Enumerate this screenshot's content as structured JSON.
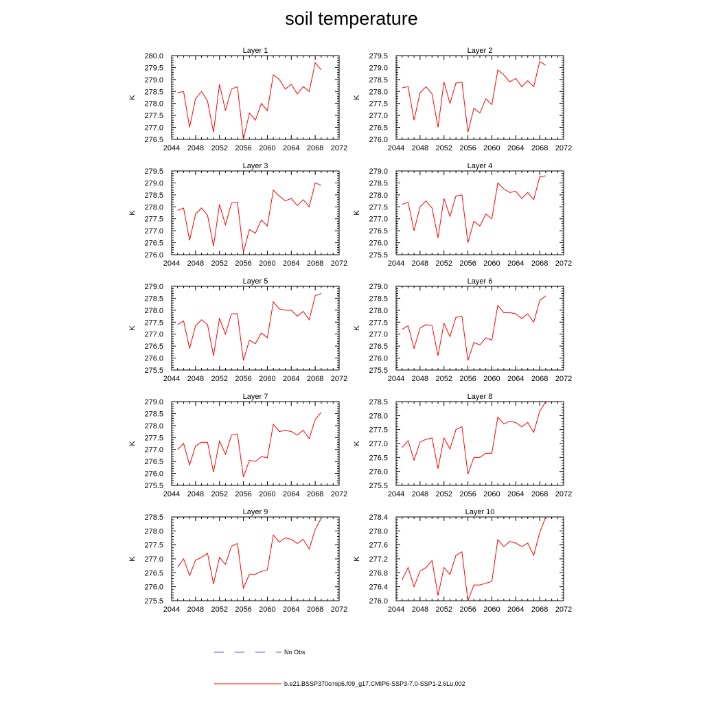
{
  "title": "soil temperature",
  "legend": {
    "items": [
      {
        "label": "No Obs",
        "color": "#5b5bd6",
        "dash": true
      },
      {
        "label": "b.e21.BSSP370cmip6.f09_g17.CMIP6-SSP3-7.0-SSP1-2.6Lu.002",
        "color": "#ff0000",
        "dash": false
      }
    ]
  },
  "colors": {
    "series": "#ff0000",
    "axis": "#000000"
  },
  "chart_data": [
    {
      "type": "line",
      "title": "Layer 1",
      "ylabel": "K",
      "xlim": [
        2044,
        2072
      ],
      "ylim": [
        276.5,
        280.0
      ],
      "xticks": [
        2044,
        2048,
        2052,
        2056,
        2060,
        2064,
        2068,
        2072
      ],
      "yticks": [
        276.5,
        277.0,
        277.5,
        278.0,
        278.5,
        279.0,
        279.5,
        280.0
      ],
      "yticklabels": [
        "276.5",
        "277.0",
        "277.5",
        "278.0",
        "278.5",
        "279.0",
        "279.5",
        "280.0"
      ],
      "x": [
        2045,
        2046,
        2047,
        2048,
        2049,
        2050,
        2051,
        2052,
        2053,
        2054,
        2055,
        2056,
        2057,
        2058,
        2059,
        2060,
        2061,
        2062,
        2063,
        2064,
        2065,
        2066,
        2067,
        2068,
        2069
      ],
      "series": [
        {
          "values": [
            278.45,
            278.5,
            277.0,
            278.2,
            278.5,
            278.1,
            276.8,
            278.8,
            277.7,
            278.6,
            278.7,
            276.5,
            277.6,
            277.3,
            278.0,
            277.7,
            279.2,
            279.0,
            278.6,
            278.8,
            278.4,
            278.7,
            278.5,
            279.7,
            279.4
          ]
        }
      ]
    },
    {
      "type": "line",
      "title": "Layer 2",
      "ylabel": "K",
      "xlim": [
        2044,
        2072
      ],
      "ylim": [
        276.0,
        279.5
      ],
      "xticks": [
        2044,
        2048,
        2052,
        2056,
        2060,
        2064,
        2068,
        2072
      ],
      "yticks": [
        276.0,
        276.5,
        277.0,
        277.5,
        278.0,
        278.5,
        279.0,
        279.5
      ],
      "yticklabels": [
        "276.0",
        "276.5",
        "277.0",
        "277.5",
        "278.0",
        "278.5",
        "279.0",
        "279.5"
      ],
      "x": [
        2045,
        2046,
        2047,
        2048,
        2049,
        2050,
        2051,
        2052,
        2053,
        2054,
        2055,
        2056,
        2057,
        2058,
        2059,
        2060,
        2061,
        2062,
        2063,
        2064,
        2065,
        2066,
        2067,
        2068,
        2069
      ],
      "series": [
        {
          "values": [
            278.15,
            278.2,
            276.8,
            277.95,
            278.2,
            277.9,
            276.5,
            278.4,
            277.5,
            278.35,
            278.4,
            276.3,
            277.3,
            277.1,
            277.7,
            277.45,
            278.9,
            278.7,
            278.4,
            278.55,
            278.2,
            278.45,
            278.2,
            279.25,
            279.1
          ]
        }
      ]
    },
    {
      "type": "line",
      "title": "Layer 3",
      "ylabel": "K",
      "xlim": [
        2044,
        2072
      ],
      "ylim": [
        276.0,
        279.5
      ],
      "xticks": [
        2044,
        2048,
        2052,
        2056,
        2060,
        2064,
        2068,
        2072
      ],
      "yticks": [
        276.0,
        276.5,
        277.0,
        277.5,
        278.0,
        278.5,
        279.0,
        279.5
      ],
      "yticklabels": [
        "276.0",
        "276.5",
        "277.0",
        "277.5",
        "278.0",
        "278.5",
        "279.0",
        "279.5"
      ],
      "x": [
        2045,
        2046,
        2047,
        2048,
        2049,
        2050,
        2051,
        2052,
        2053,
        2054,
        2055,
        2056,
        2057,
        2058,
        2059,
        2060,
        2061,
        2062,
        2063,
        2064,
        2065,
        2066,
        2067,
        2068,
        2069
      ],
      "series": [
        {
          "values": [
            277.85,
            277.95,
            276.6,
            277.7,
            277.95,
            277.65,
            276.35,
            278.1,
            277.25,
            278.15,
            278.2,
            276.1,
            277.05,
            276.9,
            277.45,
            277.2,
            278.7,
            278.45,
            278.25,
            278.35,
            278.05,
            278.3,
            278.0,
            279.0,
            278.9
          ]
        }
      ]
    },
    {
      "type": "line",
      "title": "Layer 4",
      "ylabel": "K",
      "xlim": [
        2044,
        2072
      ],
      "ylim": [
        275.5,
        279.0
      ],
      "xticks": [
        2044,
        2048,
        2052,
        2056,
        2060,
        2064,
        2068,
        2072
      ],
      "yticks": [
        275.5,
        276.0,
        276.5,
        277.0,
        277.5,
        278.0,
        278.5,
        279.0
      ],
      "yticklabels": [
        "275.5",
        "276.0",
        "276.5",
        "277.0",
        "277.5",
        "278.0",
        "278.5",
        "279.0"
      ],
      "x": [
        2045,
        2046,
        2047,
        2048,
        2049,
        2050,
        2051,
        2052,
        2053,
        2054,
        2055,
        2056,
        2057,
        2058,
        2059,
        2060,
        2061,
        2062,
        2063,
        2064,
        2065,
        2066,
        2067,
        2068,
        2069
      ],
      "series": [
        {
          "values": [
            277.6,
            277.7,
            276.5,
            277.5,
            277.75,
            277.45,
            276.2,
            277.85,
            277.1,
            277.95,
            278.0,
            276.0,
            276.9,
            276.7,
            277.2,
            277.0,
            278.5,
            278.25,
            278.1,
            278.15,
            277.85,
            278.1,
            277.8,
            278.75,
            278.8
          ]
        }
      ]
    },
    {
      "type": "line",
      "title": "Layer 5",
      "ylabel": "K",
      "xlim": [
        2044,
        2072
      ],
      "ylim": [
        275.5,
        279.0
      ],
      "xticks": [
        2044,
        2048,
        2052,
        2056,
        2060,
        2064,
        2068,
        2072
      ],
      "yticks": [
        275.5,
        276.0,
        276.5,
        277.0,
        277.5,
        278.0,
        278.5,
        279.0
      ],
      "yticklabels": [
        "275.5",
        "276.0",
        "276.5",
        "277.0",
        "277.5",
        "278.0",
        "278.5",
        "279.0"
      ],
      "x": [
        2045,
        2046,
        2047,
        2048,
        2049,
        2050,
        2051,
        2052,
        2053,
        2054,
        2055,
        2056,
        2057,
        2058,
        2059,
        2060,
        2061,
        2062,
        2063,
        2064,
        2065,
        2066,
        2067,
        2068,
        2069
      ],
      "series": [
        {
          "values": [
            277.4,
            277.55,
            276.4,
            277.35,
            277.6,
            277.4,
            276.1,
            277.65,
            277.0,
            277.85,
            277.85,
            275.9,
            276.75,
            276.6,
            277.05,
            276.85,
            278.35,
            278.05,
            278.0,
            278.0,
            277.75,
            277.95,
            277.6,
            278.6,
            278.7
          ]
        }
      ]
    },
    {
      "type": "line",
      "title": "Layer 6",
      "ylabel": "K",
      "xlim": [
        2044,
        2072
      ],
      "ylim": [
        275.5,
        279.0
      ],
      "xticks": [
        2044,
        2048,
        2052,
        2056,
        2060,
        2064,
        2068,
        2072
      ],
      "yticks": [
        275.5,
        276.0,
        276.5,
        277.0,
        277.5,
        278.0,
        278.5,
        279.0
      ],
      "yticklabels": [
        "275.5",
        "276.0",
        "276.5",
        "277.0",
        "277.5",
        "278.0",
        "278.5",
        "279.0"
      ],
      "x": [
        2045,
        2046,
        2047,
        2048,
        2049,
        2050,
        2051,
        2052,
        2053,
        2054,
        2055,
        2056,
        2057,
        2058,
        2059,
        2060,
        2061,
        2062,
        2063,
        2064,
        2065,
        2066,
        2067,
        2068,
        2069
      ],
      "series": [
        {
          "values": [
            277.2,
            277.35,
            276.4,
            277.25,
            277.4,
            277.35,
            276.1,
            277.45,
            276.9,
            277.7,
            277.75,
            275.9,
            276.65,
            276.55,
            276.85,
            276.75,
            278.2,
            277.9,
            277.9,
            277.85,
            277.65,
            277.85,
            277.5,
            278.4,
            278.6
          ]
        }
      ]
    },
    {
      "type": "line",
      "title": "Layer 7",
      "ylabel": "K",
      "xlim": [
        2044,
        2072
      ],
      "ylim": [
        275.5,
        279.0
      ],
      "xticks": [
        2044,
        2048,
        2052,
        2056,
        2060,
        2064,
        2068,
        2072
      ],
      "yticks": [
        275.5,
        276.0,
        276.5,
        277.0,
        277.5,
        278.0,
        278.5,
        279.0
      ],
      "yticklabels": [
        "275.5",
        "276.0",
        "276.5",
        "277.0",
        "277.5",
        "278.0",
        "278.5",
        "279.0"
      ],
      "x": [
        2045,
        2046,
        2047,
        2048,
        2049,
        2050,
        2051,
        2052,
        2053,
        2054,
        2055,
        2056,
        2057,
        2058,
        2059,
        2060,
        2061,
        2062,
        2063,
        2064,
        2065,
        2066,
        2067,
        2068,
        2069
      ],
      "series": [
        {
          "values": [
            277.0,
            277.25,
            276.35,
            277.15,
            277.3,
            277.3,
            276.05,
            277.35,
            276.8,
            277.6,
            277.65,
            275.85,
            276.55,
            276.5,
            276.7,
            276.65,
            278.05,
            277.75,
            277.8,
            277.75,
            277.6,
            277.8,
            277.45,
            278.25,
            278.55
          ]
        }
      ]
    },
    {
      "type": "line",
      "title": "Layer 8",
      "ylabel": "K",
      "xlim": [
        2044,
        2072
      ],
      "ylim": [
        275.5,
        278.5
      ],
      "xticks": [
        2044,
        2048,
        2052,
        2056,
        2060,
        2064,
        2068,
        2072
      ],
      "yticks": [
        275.5,
        276.0,
        276.5,
        277.0,
        277.5,
        278.0,
        278.5
      ],
      "yticklabels": [
        "275.5",
        "276.0",
        "276.5",
        "277.0",
        "277.5",
        "278.0",
        "278.5"
      ],
      "x": [
        2045,
        2046,
        2047,
        2048,
        2049,
        2050,
        2051,
        2052,
        2053,
        2054,
        2055,
        2056,
        2057,
        2058,
        2059,
        2060,
        2061,
        2062,
        2063,
        2064,
        2065,
        2066,
        2067,
        2068,
        2069
      ],
      "series": [
        {
          "values": [
            276.85,
            277.1,
            276.4,
            277.05,
            277.15,
            277.2,
            276.1,
            277.2,
            276.8,
            277.5,
            277.6,
            275.9,
            276.5,
            276.5,
            276.65,
            276.65,
            277.95,
            277.7,
            277.8,
            277.75,
            277.6,
            277.75,
            277.4,
            278.15,
            278.5
          ]
        }
      ]
    },
    {
      "type": "line",
      "title": "Layer 9",
      "ylabel": "K",
      "xlim": [
        2044,
        2072
      ],
      "ylim": [
        275.5,
        278.5
      ],
      "xticks": [
        2044,
        2048,
        2052,
        2056,
        2060,
        2064,
        2068,
        2072
      ],
      "yticks": [
        275.5,
        276.0,
        276.5,
        277.0,
        277.5,
        278.0,
        278.5
      ],
      "yticklabels": [
        "275.5",
        "276.0",
        "276.5",
        "277.0",
        "277.5",
        "278.0",
        "278.5"
      ],
      "x": [
        2045,
        2046,
        2047,
        2048,
        2049,
        2050,
        2051,
        2052,
        2053,
        2054,
        2055,
        2056,
        2057,
        2058,
        2059,
        2060,
        2061,
        2062,
        2063,
        2064,
        2065,
        2066,
        2067,
        2068,
        2069
      ],
      "series": [
        {
          "values": [
            276.7,
            277.0,
            276.4,
            276.95,
            277.05,
            277.2,
            276.1,
            277.05,
            276.8,
            277.45,
            277.55,
            275.95,
            276.45,
            276.45,
            276.55,
            276.6,
            277.85,
            277.6,
            277.75,
            277.7,
            277.55,
            277.7,
            277.35,
            278.05,
            278.45
          ]
        }
      ]
    },
    {
      "type": "line",
      "title": "Layer 10",
      "ylabel": "K",
      "xlim": [
        2044,
        2072
      ],
      "ylim": [
        276.0,
        278.4
      ],
      "xticks": [
        2044,
        2048,
        2052,
        2056,
        2060,
        2064,
        2068,
        2072
      ],
      "yticks": [
        276.0,
        276.4,
        276.8,
        277.2,
        277.6,
        278.0,
        278.4
      ],
      "yticklabels": [
        "276.0",
        "276.4",
        "276.8",
        "277.2",
        "277.6",
        "278.0",
        "278.4"
      ],
      "x": [
        2045,
        2046,
        2047,
        2048,
        2049,
        2050,
        2051,
        2052,
        2053,
        2054,
        2055,
        2056,
        2057,
        2058,
        2059,
        2060,
        2061,
        2062,
        2063,
        2064,
        2065,
        2066,
        2067,
        2068,
        2069
      ],
      "series": [
        {
          "values": [
            276.6,
            276.95,
            276.4,
            276.85,
            276.95,
            277.15,
            276.15,
            276.95,
            276.75,
            277.3,
            277.4,
            276.0,
            276.45,
            276.45,
            276.5,
            276.55,
            277.75,
            277.55,
            277.7,
            277.65,
            277.55,
            277.65,
            277.3,
            277.95,
            278.4
          ]
        }
      ]
    }
  ]
}
